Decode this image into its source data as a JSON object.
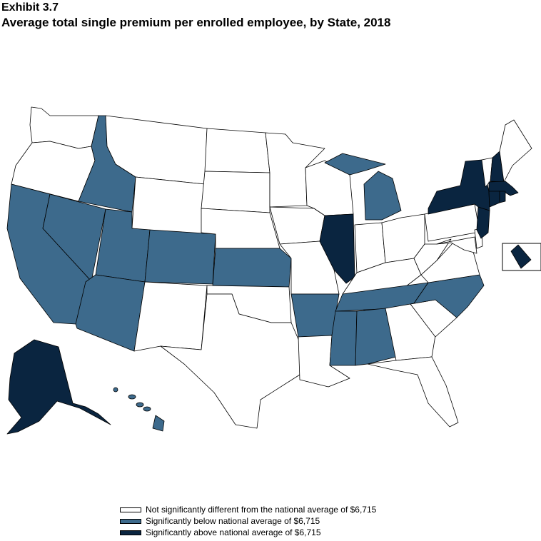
{
  "exhibit": "Exhibit 3.7",
  "title": "Average total single premium per enrolled employee, by State, 2018",
  "colors": {
    "not_sig": "#ffffff",
    "below": "#3d6a8c",
    "above": "#0a2540"
  },
  "legend": [
    {
      "key": "not_sig",
      "label": "Not significantly different from the national average of  $6,715"
    },
    {
      "key": "below",
      "label": "Significantly below national average of  $6,715"
    },
    {
      "key": "above",
      "label": "Significantly above national average of  $6,715"
    }
  ],
  "states": {
    "WA": "not_sig",
    "OR": "not_sig",
    "CA": "below",
    "NV": "below",
    "ID": "below",
    "MT": "not_sig",
    "WY": "not_sig",
    "UT": "below",
    "CO": "below",
    "AZ": "below",
    "NM": "not_sig",
    "ND": "not_sig",
    "SD": "not_sig",
    "NE": "not_sig",
    "KS": "below",
    "OK": "not_sig",
    "TX": "not_sig",
    "MN": "not_sig",
    "IA": "not_sig",
    "MO": "not_sig",
    "AR": "below",
    "LA": "not_sig",
    "WI": "not_sig",
    "IL": "above",
    "MI": "below",
    "IN": "not_sig",
    "OH": "not_sig",
    "KY": "not_sig",
    "TN": "below",
    "MS": "below",
    "AL": "below",
    "GA": "not_sig",
    "FL": "not_sig",
    "SC": "not_sig",
    "NC": "below",
    "VA": "not_sig",
    "WV": "not_sig",
    "MD": "not_sig",
    "DE": "not_sig",
    "PA": "not_sig",
    "NJ": "above",
    "NY": "above",
    "CT": "above",
    "RI": "above",
    "MA": "above",
    "VT": "not_sig",
    "NH": "above",
    "ME": "not_sig",
    "AK": "above",
    "HI": "below",
    "DC": "above"
  }
}
